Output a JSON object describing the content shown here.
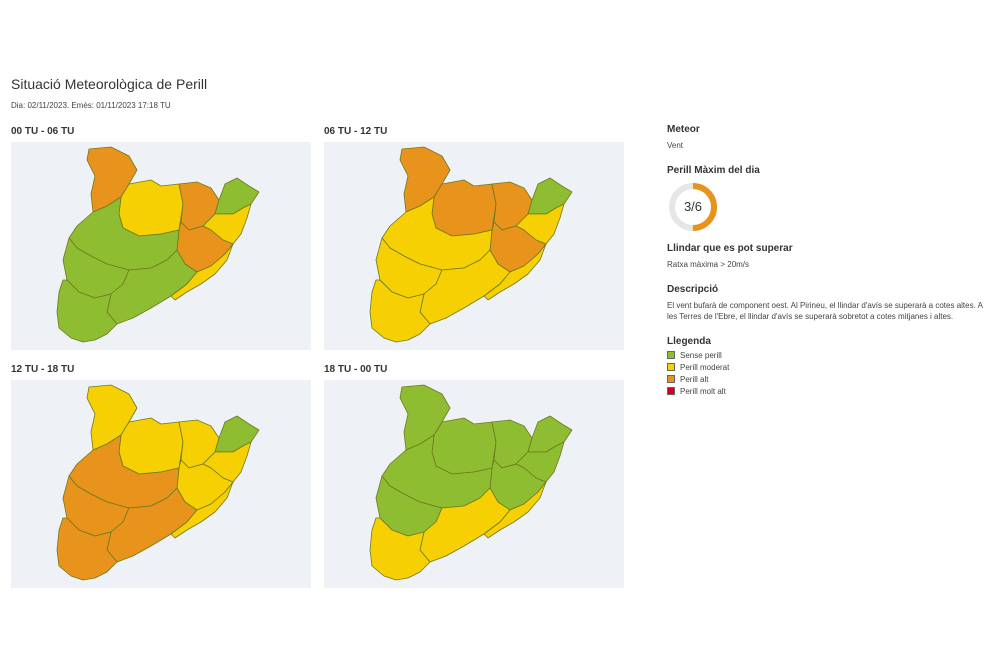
{
  "header": {
    "title": "Situació Meteorològica de Perill",
    "subtitle": "Dia: 02/11/2023. Emès: 01/11/2023 17:18 TU"
  },
  "colors": {
    "sense": "#8fbd32",
    "moderat": "#f6d003",
    "alt": "#e8931c",
    "molt_alt": "#d0021b",
    "border": "#6b7a1e",
    "map_bg": "#eef1f5",
    "gauge_track": "#e6e6e6"
  },
  "panels": [
    {
      "label": "00 TU - 06 TU",
      "regions": {
        "pyrenees_west": "alt",
        "pyrenees_central": "moderat",
        "pyrenees_east": "alt",
        "girona_north": "sense",
        "girona_coast": "moderat",
        "central_east": "alt",
        "central_west": "sense",
        "lleida_south": "sense",
        "tarragona": "sense",
        "ebre": "sense",
        "barcelona_coast": "moderat"
      }
    },
    {
      "label": "06 TU - 12 TU",
      "regions": {
        "pyrenees_west": "alt",
        "pyrenees_central": "alt",
        "pyrenees_east": "alt",
        "girona_north": "sense",
        "girona_coast": "moderat",
        "central_east": "alt",
        "central_west": "moderat",
        "lleida_south": "moderat",
        "tarragona": "moderat",
        "ebre": "moderat",
        "barcelona_coast": "moderat"
      }
    },
    {
      "label": "12 TU - 18 TU",
      "regions": {
        "pyrenees_west": "moderat",
        "pyrenees_central": "moderat",
        "pyrenees_east": "moderat",
        "girona_north": "sense",
        "girona_coast": "moderat",
        "central_east": "moderat",
        "central_west": "alt",
        "lleida_south": "alt",
        "tarragona": "alt",
        "ebre": "alt",
        "barcelona_coast": "moderat"
      }
    },
    {
      "label": "18 TU - 00 TU",
      "regions": {
        "pyrenees_west": "sense",
        "pyrenees_central": "sense",
        "pyrenees_east": "sense",
        "girona_north": "sense",
        "girona_coast": "sense",
        "central_east": "sense",
        "central_west": "sense",
        "lleida_south": "sense",
        "tarragona": "moderat",
        "ebre": "moderat",
        "barcelona_coast": "moderat"
      }
    }
  ],
  "sidebar": {
    "meteor_h": "Meteor",
    "meteor_v": "Vent",
    "perill_h": "Perill Màxim del dia",
    "perill_v": "3/6",
    "perill_level": 3,
    "perill_max": 6,
    "llindar_h": "Llindar que es pot superar",
    "llindar_v": "Ratxa màxima > 20m/s",
    "desc_h": "Descripció",
    "desc_v": "El vent bufarà de component oest. Al Pirineu, el llindar d'avís se superarà a cotes altes. A les Terres de l'Ebre, el llindar d'avís se superarà sobretot a cotes mitjanes i altes.",
    "leg_h": "Llegenda",
    "legend": [
      {
        "key": "sense",
        "label": "Sense perill"
      },
      {
        "key": "moderat",
        "label": "Perill moderat"
      },
      {
        "key": "alt",
        "label": "Perill alt"
      },
      {
        "key": "molt_alt",
        "label": "Perill molt alt"
      }
    ]
  }
}
